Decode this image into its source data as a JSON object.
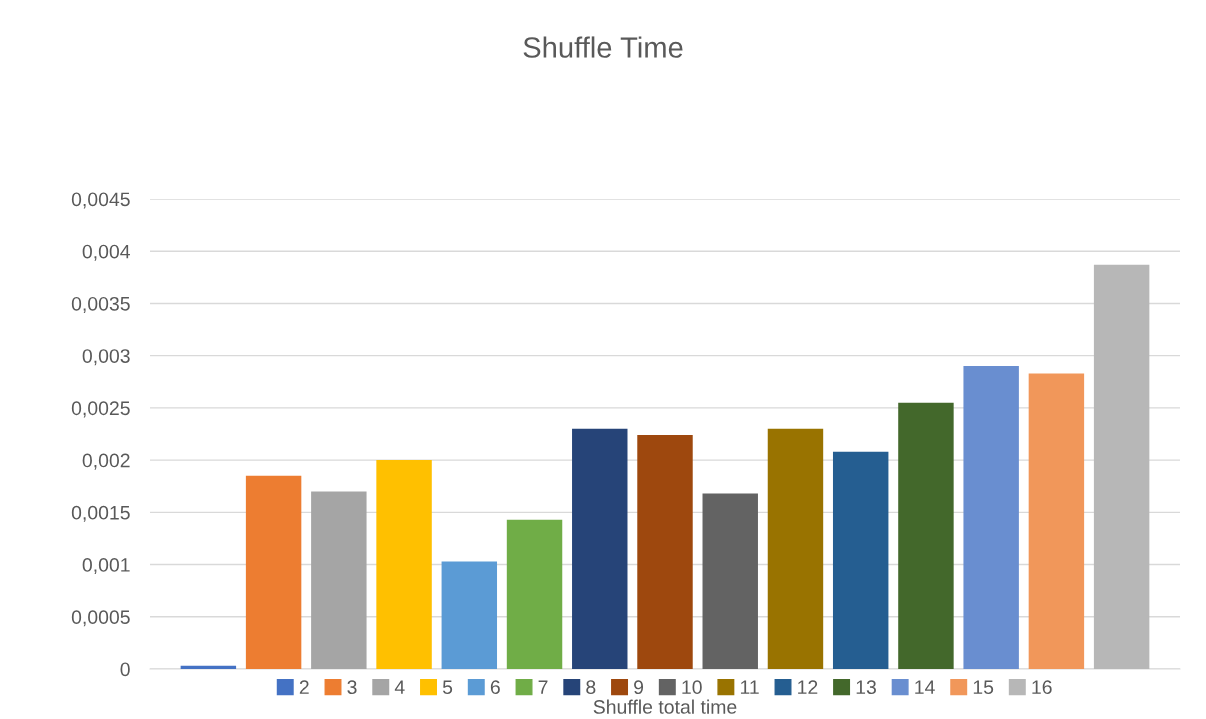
{
  "chart_data": {
    "type": "bar",
    "title": "Shuffle Time",
    "categories": [
      "Shuffle total time"
    ],
    "series": [
      {
        "name": "2",
        "color": "#4472c4",
        "values": [
          3e-05
        ]
      },
      {
        "name": "3",
        "color": "#ed7d31",
        "values": [
          0.00185
        ]
      },
      {
        "name": "4",
        "color": "#a5a5a5",
        "values": [
          0.0017
        ]
      },
      {
        "name": "5",
        "color": "#ffc000",
        "values": [
          0.002
        ]
      },
      {
        "name": "6",
        "color": "#5b9bd5",
        "values": [
          0.00103
        ]
      },
      {
        "name": "7",
        "color": "#70ad47",
        "values": [
          0.00143
        ]
      },
      {
        "name": "8",
        "color": "#264478",
        "values": [
          0.0023
        ]
      },
      {
        "name": "9",
        "color": "#9e480e",
        "values": [
          0.00224
        ]
      },
      {
        "name": "10",
        "color": "#636363",
        "values": [
          0.00168
        ]
      },
      {
        "name": "11",
        "color": "#997300",
        "values": [
          0.0023
        ]
      },
      {
        "name": "12",
        "color": "#255e91",
        "values": [
          0.00208
        ]
      },
      {
        "name": "13",
        "color": "#43682b",
        "values": [
          0.00255
        ]
      },
      {
        "name": "14",
        "color": "#698ed0",
        "values": [
          0.0029
        ]
      },
      {
        "name": "15",
        "color": "#f1975a",
        "values": [
          0.00283
        ]
      },
      {
        "name": "16",
        "color": "#b7b7b7",
        "values": [
          0.00387
        ]
      }
    ],
    "ylim": [
      0,
      0.0045
    ],
    "yticks": [
      0,
      {
        "value": 0.0005,
        "label": "0,0005"
      },
      {
        "value": 0.001,
        "label": "0,001"
      },
      {
        "value": 0.0015,
        "label": "0,0015"
      },
      {
        "value": 0.002,
        "label": "0,002"
      },
      {
        "value": 0.0025,
        "label": "0,0025"
      },
      {
        "value": 0.003,
        "label": "0,003"
      },
      {
        "value": 0.0035,
        "label": "0,0035"
      },
      {
        "value": 0.004,
        "label": "0,004"
      },
      {
        "value": 0.0045,
        "label": "0,0045"
      }
    ],
    "grid": "y",
    "legend": "bottom"
  }
}
